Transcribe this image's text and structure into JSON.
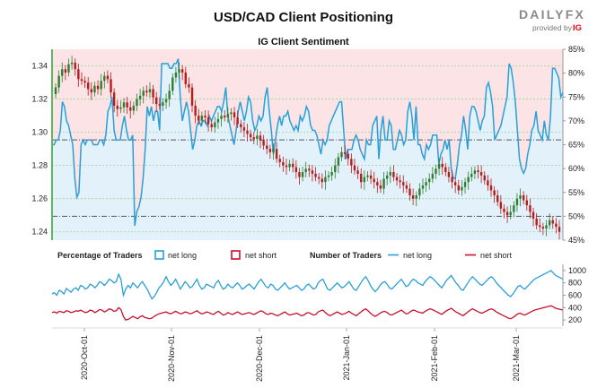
{
  "header": {
    "title": "USD/CAD Client Positioning",
    "subtitle": "IG Client Sentiment",
    "brand_name": "DAILYFX",
    "brand_provided": "provided by",
    "brand_ig": "IG"
  },
  "legend": {
    "pct_title": "Percentage of Traders",
    "num_title": "Number of Traders",
    "net_long": "net long",
    "net_short": "net short"
  },
  "colors": {
    "net_long": "#2a9fd8",
    "net_short": "#c8102e",
    "long_fill": "#e3f1fa",
    "short_fill": "#fbe3e6",
    "candle_up": "#2e7d32",
    "candle_down": "#b71c1c",
    "green_axis": "#5cb85c",
    "grey_axis": "#999999"
  },
  "chart_data": [
    {
      "type": "line",
      "title": "IG Client Sentiment",
      "y_left_ticks": [
        "1.24",
        "1.26",
        "1.28",
        "1.30",
        "1.32",
        "1.34"
      ],
      "y_left_range": [
        1.235,
        1.35
      ],
      "y_right_ticks": [
        "45%",
        "50%",
        "55%",
        "60%",
        "65%",
        "70%",
        "75%",
        "80%",
        "85%"
      ],
      "y_right_range": [
        45,
        85
      ],
      "reference_levels_pct": [
        50,
        66
      ],
      "series": [
        {
          "name": "net long",
          "unit": "%",
          "values": [
            65,
            65,
            66,
            66,
            68,
            74,
            73,
            70,
            69,
            67,
            65,
            58,
            54,
            55,
            65,
            66,
            65,
            66,
            66,
            66,
            65,
            65,
            65,
            66,
            66,
            65,
            67,
            72,
            73,
            75,
            68,
            66,
            66,
            66,
            69,
            71,
            68,
            66,
            66,
            67,
            48,
            51,
            52,
            54,
            58,
            64,
            73,
            71,
            73,
            70,
            72,
            72,
            68,
            82,
            82,
            82,
            82,
            81,
            81,
            82,
            82,
            83,
            75,
            70,
            72,
            74,
            72,
            68,
            64,
            66,
            69,
            70,
            69,
            70,
            70,
            69,
            71,
            70,
            71,
            72,
            73,
            73,
            72,
            74,
            77,
            71,
            69,
            67,
            65,
            68,
            72,
            74,
            72,
            70,
            72,
            75,
            74,
            70,
            68,
            69,
            71,
            70,
            71,
            75,
            77,
            72,
            68,
            63,
            66,
            69,
            71,
            69,
            71,
            71,
            72,
            70,
            69,
            68,
            69,
            68,
            71,
            70,
            71,
            73,
            72,
            69,
            68,
            68,
            67,
            65,
            63,
            66,
            65,
            66,
            69,
            70,
            71,
            72,
            73,
            74,
            74,
            68,
            62,
            64,
            64,
            64,
            66,
            67,
            66,
            64,
            63,
            62,
            66,
            65,
            65,
            69,
            70,
            71,
            62,
            68,
            71,
            66,
            66,
            70,
            69,
            64,
            64,
            66,
            68,
            67,
            65,
            66,
            72,
            74,
            71,
            66,
            73,
            65,
            65,
            63,
            62,
            65,
            64,
            65,
            67,
            67,
            67,
            61,
            63,
            64,
            66,
            64,
            66,
            60,
            58,
            58,
            61,
            65,
            67,
            71,
            68,
            64,
            71,
            73,
            73,
            72,
            70,
            68,
            70,
            71,
            77,
            78,
            76,
            73,
            66,
            67,
            68,
            69,
            71,
            73,
            75,
            82,
            81,
            78,
            74,
            68,
            62,
            60,
            59,
            60,
            63,
            65,
            68,
            69,
            72,
            68,
            67,
            66,
            70,
            67,
            66,
            71,
            81,
            81,
            80,
            79,
            75,
            76
          ]
        },
        {
          "name": "USD/CAD",
          "unit": "price",
          "values": [
            1.327,
            1.334,
            1.338,
            1.336,
            1.341,
            1.342,
            1.338,
            1.332,
            1.331,
            1.33,
            1.326,
            1.324,
            1.328,
            1.326,
            1.331,
            1.334,
            1.332,
            1.324,
            1.316,
            1.314,
            1.315,
            1.318,
            1.315,
            1.313,
            1.316,
            1.32,
            1.322,
            1.325,
            1.324,
            1.326,
            1.321,
            1.317,
            1.316,
            1.318,
            1.32,
            1.325,
            1.333,
            1.336,
            1.338,
            1.336,
            1.329,
            1.327,
            1.316,
            1.31,
            1.307,
            1.31,
            1.309,
            1.305,
            1.303,
            1.306,
            1.308,
            1.31,
            1.309,
            1.311,
            1.312,
            1.309,
            1.305,
            1.303,
            1.301,
            1.299,
            1.297,
            1.296,
            1.298,
            1.295,
            1.292,
            1.29,
            1.288,
            1.29,
            1.284,
            1.282,
            1.28,
            1.279,
            1.281,
            1.279,
            1.276,
            1.273,
            1.276,
            1.278,
            1.277,
            1.275,
            1.273,
            1.272,
            1.27,
            1.273,
            1.274,
            1.276,
            1.28,
            1.285,
            1.288,
            1.287,
            1.284,
            1.28,
            1.277,
            1.275,
            1.27,
            1.273,
            1.274,
            1.272,
            1.27,
            1.268,
            1.266,
            1.272,
            1.274,
            1.276,
            1.273,
            1.271,
            1.27,
            1.268,
            1.266,
            1.262,
            1.26,
            1.262,
            1.266,
            1.268,
            1.27,
            1.272,
            1.275,
            1.278,
            1.281,
            1.279,
            1.276,
            1.273,
            1.27,
            1.268,
            1.265,
            1.267,
            1.27,
            1.273,
            1.275,
            1.277,
            1.276,
            1.274,
            1.271,
            1.268,
            1.265,
            1.262,
            1.258,
            1.254,
            1.252,
            1.25,
            1.252,
            1.256,
            1.26,
            1.262,
            1.259,
            1.256,
            1.252,
            1.248,
            1.244,
            1.243,
            1.242,
            1.244,
            1.247,
            1.245,
            1.243,
            1.24
          ]
        }
      ]
    },
    {
      "type": "bar",
      "title": "Percentage of Traders",
      "series": [
        {
          "name": "net long"
        },
        {
          "name": "net short"
        }
      ]
    },
    {
      "type": "line",
      "title": "Number of Traders",
      "y_ticks": [
        "200",
        "400",
        "600",
        "800",
        "1000"
      ],
      "y_range": [
        100,
        1100
      ],
      "x_ticks": [
        "2020-Oct-01",
        "2020-Nov-01",
        "2020-Dec-01",
        "2021-Jan-01",
        "2021-Feb-01",
        "2021-Mar-01"
      ],
      "series": [
        {
          "name": "net long",
          "values": [
            620,
            640,
            600,
            680,
            660,
            620,
            710,
            680,
            650,
            700,
            720,
            680,
            760,
            740,
            700,
            720,
            780,
            760,
            720,
            760,
            820,
            800,
            760,
            800,
            860,
            840,
            800,
            820,
            940,
            860,
            600,
            700,
            760,
            720,
            800,
            760,
            720,
            780,
            820,
            760,
            700,
            620,
            540,
            580,
            640,
            720,
            760,
            820,
            900,
            820,
            760,
            800,
            860,
            780,
            700,
            760,
            820,
            780,
            720,
            740,
            800,
            860,
            760,
            700,
            720,
            780,
            760,
            740,
            720,
            800,
            840,
            760,
            700,
            720,
            780,
            740,
            720,
            760,
            800,
            760,
            700,
            720,
            760,
            780,
            740,
            700,
            760,
            820,
            860,
            800,
            740,
            720,
            780,
            760,
            700,
            680,
            720,
            760,
            800,
            740,
            700,
            720,
            740,
            760,
            720,
            680,
            700,
            760,
            780,
            740,
            700,
            720,
            800,
            840,
            860,
            780,
            700,
            680,
            720,
            760,
            800,
            760,
            720,
            740,
            780,
            820,
            760,
            700,
            680,
            740,
            800,
            860,
            900,
            840,
            760,
            700,
            660,
            700,
            760,
            800,
            820,
            780,
            720,
            700,
            740,
            780,
            820,
            860,
            800,
            740,
            760,
            820,
            860,
            840,
            800,
            780,
            760,
            820,
            860,
            900,
            880,
            840,
            800,
            760,
            720,
            780,
            840,
            880,
            920,
            860,
            800,
            760,
            700,
            680,
            740,
            800,
            860,
            900,
            860,
            820,
            780,
            760,
            800,
            840,
            880,
            900,
            860,
            800,
            760,
            720,
            680,
            640,
            600,
            580,
            620,
            680,
            740,
            760,
            720,
            700,
            740,
            780,
            820,
            860,
            880,
            900,
            920,
            940,
            960,
            980,
            1000,
            960,
            920,
            900,
            880,
            860
          ]
        },
        {
          "name": "net short",
          "values": [
            320,
            330,
            310,
            340,
            330,
            320,
            350,
            340,
            320,
            330,
            350,
            340,
            360,
            340,
            320,
            330,
            360,
            350,
            320,
            340,
            370,
            360,
            330,
            350,
            380,
            370,
            340,
            350,
            400,
            370,
            260,
            200,
            210,
            230,
            260,
            240,
            220,
            250,
            270,
            240,
            230,
            220,
            230,
            260,
            280,
            300,
            310,
            320,
            330,
            310,
            300,
            320,
            340,
            320,
            300,
            310,
            330,
            320,
            300,
            310,
            330,
            350,
            320,
            300,
            310,
            330,
            320,
            300,
            290,
            320,
            340,
            310,
            280,
            290,
            320,
            300,
            290,
            310,
            330,
            310,
            290,
            300,
            310,
            320,
            300,
            290,
            310,
            330,
            350,
            330,
            300,
            290,
            310,
            300,
            280,
            270,
            290,
            310,
            330,
            300,
            280,
            290,
            300,
            310,
            290,
            270,
            280,
            310,
            320,
            300,
            280,
            290,
            330,
            350,
            360,
            320,
            290,
            270,
            290,
            310,
            330,
            310,
            290,
            300,
            320,
            340,
            310,
            290,
            270,
            300,
            330,
            360,
            380,
            350,
            310,
            280,
            260,
            280,
            310,
            330,
            340,
            320,
            290,
            280,
            300,
            320,
            340,
            360,
            330,
            300,
            310,
            340,
            360,
            350,
            330,
            320,
            310,
            340,
            360,
            380,
            370,
            350,
            330,
            310,
            290,
            320,
            350,
            370,
            390,
            360,
            330,
            310,
            290,
            270,
            300,
            330,
            360,
            380,
            360,
            340,
            320,
            310,
            330,
            350,
            370,
            380,
            360,
            330,
            310,
            290,
            270,
            250,
            230,
            220,
            240,
            270,
            300,
            310,
            290,
            280,
            300,
            320,
            340,
            360,
            370,
            380,
            390,
            400,
            410,
            420,
            430,
            410,
            390,
            380,
            370,
            360
          ]
        }
      ]
    }
  ]
}
